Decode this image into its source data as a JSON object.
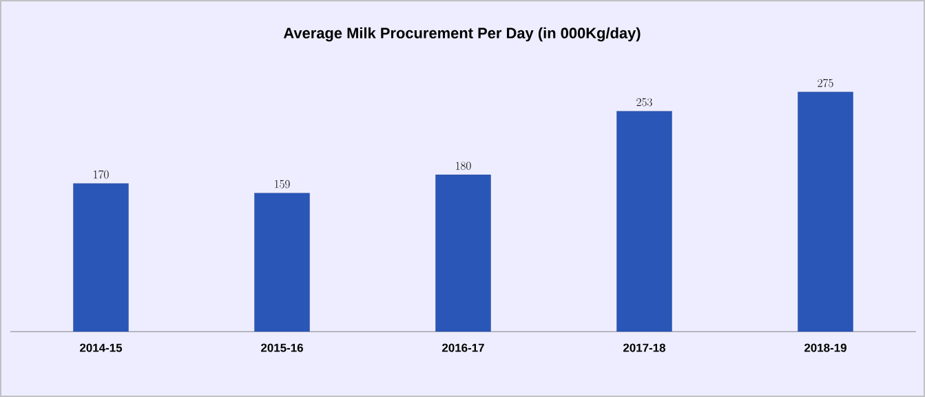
{
  "chart_data": {
    "type": "bar",
    "title": "Average Milk Procurement Per Day (in 000Kg/day)",
    "categories": [
      "2014-15",
      "2015-16",
      "2016-17",
      "2017-18",
      "2018-19"
    ],
    "values": [
      170,
      159,
      180,
      253,
      275
    ],
    "color": "#2a56b8",
    "data_labels": true
  }
}
